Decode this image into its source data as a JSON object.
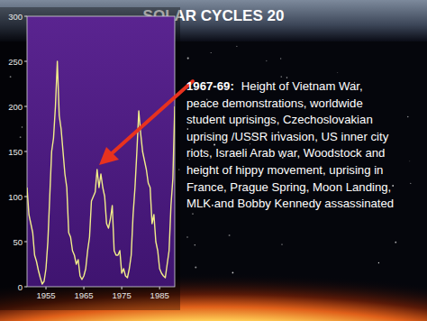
{
  "chart_data": {
    "type": "line",
    "title": "SOLAR CYCLES 20",
    "color": "#f2ee8a",
    "xlim": [
      1950,
      1989
    ],
    "ylim": [
      0,
      300
    ],
    "xticks": [
      1955,
      1965,
      1975,
      1985
    ],
    "yticks": [
      0,
      50,
      100,
      150,
      200,
      250,
      300
    ],
    "grid": false,
    "x": [
      1950.0,
      1950.5,
      1951.0,
      1951.5,
      1952.0,
      1952.5,
      1953.0,
      1953.5,
      1954.0,
      1954.5,
      1955.0,
      1955.5,
      1956.0,
      1956.5,
      1957.0,
      1957.5,
      1958.0,
      1958.5,
      1959.0,
      1959.5,
      1960.0,
      1960.5,
      1961.0,
      1961.5,
      1962.0,
      1962.5,
      1963.0,
      1963.5,
      1964.0,
      1964.5,
      1965.0,
      1965.5,
      1966.0,
      1966.5,
      1967.0,
      1967.5,
      1968.0,
      1968.5,
      1969.0,
      1969.5,
      1970.0,
      1970.5,
      1971.0,
      1971.5,
      1972.0,
      1972.5,
      1973.0,
      1973.5,
      1974.0,
      1974.5,
      1975.0,
      1975.5,
      1976.0,
      1976.5,
      1977.0,
      1977.5,
      1978.0,
      1978.5,
      1979.0,
      1979.5,
      1980.0,
      1980.5,
      1981.0,
      1981.5,
      1982.0,
      1982.5,
      1983.0,
      1983.5,
      1984.0,
      1984.5,
      1985.0,
      1985.5,
      1986.0,
      1986.5,
      1987.0,
      1987.5,
      1988.0,
      1988.5,
      1989.0
    ],
    "values": [
      110,
      80,
      70,
      60,
      35,
      28,
      18,
      10,
      3,
      6,
      20,
      50,
      100,
      150,
      165,
      200,
      250,
      190,
      175,
      150,
      125,
      110,
      60,
      55,
      40,
      35,
      25,
      30,
      12,
      8,
      12,
      20,
      40,
      55,
      95,
      100,
      105,
      130,
      110,
      125,
      110,
      100,
      70,
      65,
      75,
      90,
      40,
      35,
      35,
      40,
      15,
      20,
      12,
      10,
      20,
      35,
      80,
      110,
      150,
      195,
      170,
      150,
      140,
      130,
      115,
      110,
      70,
      80,
      50,
      40,
      20,
      15,
      12,
      10,
      25,
      40,
      90,
      120,
      200
    ],
    "annotation": {
      "heading": "1967-69:",
      "lines": [
        "Height of Vietnam War,",
        "peace demonstrations, worldwide",
        "student uprisings, Czechoslovakian",
        "uprising /USSR invasion, US inner city",
        "riots, Israeli Arab war, Woodstock and",
        "height of hippy movement, uprising in",
        "France, Prague Spring, Moon Landing,",
        "MLK and Bobby Kennedy assassinated"
      ]
    }
  }
}
